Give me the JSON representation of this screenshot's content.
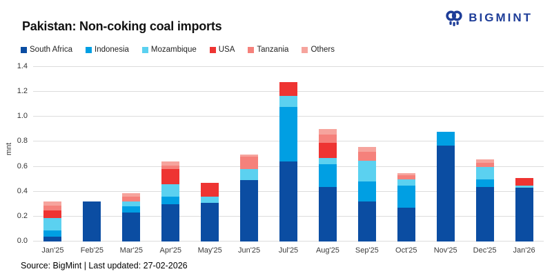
{
  "header": {
    "title": "Pakistan: Non-coking coal imports",
    "brand": "BIGMINT",
    "brand_color": "#1E3D98"
  },
  "footer": {
    "source": "Source: BigMint | Last updated: 27-02-2026"
  },
  "chart_data": {
    "type": "bar",
    "subtype": "stacked-vertical",
    "title": "Pakistan: Non-coking coal imports",
    "xlabel": "",
    "ylabel": "mnt",
    "ylim": [
      0,
      1.4
    ],
    "ytick_step": 0.2,
    "yticks": [
      "0.0",
      "0.2",
      "0.4",
      "0.6",
      "0.8",
      "1.0",
      "1.2",
      "1.4"
    ],
    "grid": "horizontal",
    "grid_color": "#DCDCDC",
    "legend_position": "top",
    "categories": [
      "Jan'25",
      "Feb'25",
      "Mar'25",
      "Apr'25",
      "May'25",
      "Jun'25",
      "Jul'25",
      "Aug'25",
      "Sep'25",
      "Oct'25",
      "Nov'25",
      "Dec'25",
      "Jan'26"
    ],
    "series": [
      {
        "name": "South Africa",
        "color": "#0B4DA2",
        "values": [
          0.04,
          0.32,
          0.23,
          0.3,
          0.31,
          0.49,
          0.64,
          0.44,
          0.32,
          0.27,
          0.77,
          0.44,
          0.43
        ]
      },
      {
        "name": "Indonesia",
        "color": "#009FE3",
        "values": [
          0.05,
          0,
          0.05,
          0.06,
          0,
          0,
          0.44,
          0.18,
          0.16,
          0.18,
          0.11,
          0.06,
          0
        ]
      },
      {
        "name": "Mozambique",
        "color": "#5BD1F0",
        "values": [
          0.1,
          0,
          0.04,
          0.1,
          0.05,
          0.09,
          0.09,
          0.05,
          0.17,
          0.05,
          0,
          0.1,
          0.02
        ]
      },
      {
        "name": "USA",
        "color": "#EE3432",
        "values": [
          0.06,
          0,
          0,
          0.12,
          0.11,
          0,
          0.11,
          0.12,
          0,
          0,
          0,
          0,
          0.06
        ]
      },
      {
        "name": "Tanzania",
        "color": "#F5817B",
        "values": [
          0.04,
          0,
          0.04,
          0.03,
          0,
          0.1,
          0,
          0.07,
          0.07,
          0.03,
          0,
          0.03,
          0
        ]
      },
      {
        "name": "Others",
        "color": "#F6A49D",
        "values": [
          0.03,
          0,
          0.03,
          0.03,
          0,
          0.02,
          0,
          0.04,
          0.04,
          0.02,
          0,
          0.03,
          0
        ]
      }
    ],
    "totals": [
      0.32,
      0.32,
      0.39,
      0.64,
      0.47,
      0.7,
      1.28,
      0.9,
      0.76,
      0.55,
      0.88,
      0.66,
      0.51
    ]
  }
}
